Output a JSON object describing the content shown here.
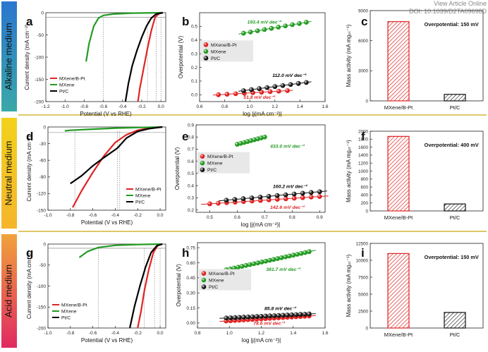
{
  "header": {
    "line1": "View Article Online",
    "line2": "DOI: 10.1039/D2TA09698D"
  },
  "rows": [
    {
      "label": "Alkaline medium",
      "color_top": "#2a76cf",
      "color_bottom": "#3aa8a8"
    },
    {
      "label": "Neutral medium",
      "color_top": "#f2d21c",
      "color_bottom": "#f5b52a"
    },
    {
      "label": "Acid medium",
      "color_top": "#f1a23b",
      "color_bottom": "#e02a62"
    }
  ],
  "colors": {
    "red": "#e02424",
    "green": "#239b23",
    "black": "#000000",
    "separator": "#d4b536"
  },
  "chart_data": [
    {
      "id": "lsv-alkaline",
      "panel": "a",
      "type": "line",
      "xlabel": "Potential (V vs RHE)",
      "ylabel": "Current density (mA cm⁻²)",
      "xlim": [
        -1.2,
        0.05
      ],
      "ylim": [
        -200,
        0
      ],
      "xticks": [
        "-1.2",
        "-1.0",
        "-0.8",
        "-0.6",
        "-0.4",
        "-0.2",
        "0.0"
      ],
      "xtick_vals": [
        -1.2,
        -1.0,
        -0.8,
        -0.6,
        -0.4,
        -0.2,
        0.0
      ],
      "yticks": [
        "0",
        "-50",
        "-100",
        "-150",
        "-200"
      ],
      "ytick_vals": [
        0,
        -50,
        -100,
        -150,
        -200
      ],
      "legend": [
        "MXene/B-Pt",
        "MXene",
        "Pt/C"
      ],
      "legend_pos": "bottom-left",
      "series": [
        {
          "name": "MXene/B-Pt",
          "color": "red",
          "x": [
            0.02,
            -0.02,
            -0.06,
            -0.1,
            -0.14,
            -0.18,
            -0.22,
            -0.24
          ],
          "y": [
            0,
            -2,
            -10,
            -40,
            -80,
            -125,
            -170,
            -200
          ]
        },
        {
          "name": "MXene",
          "color": "green",
          "x": [
            0.02,
            -0.3,
            -0.5,
            -0.6,
            -0.65,
            -0.7,
            -0.75,
            -0.78
          ],
          "y": [
            0,
            -1,
            -3,
            -6,
            -12,
            -30,
            -70,
            -110
          ]
        },
        {
          "name": "Pt/C",
          "color": "black",
          "x": [
            0.02,
            -0.05,
            -0.1,
            -0.15,
            -0.2,
            -0.25,
            -0.3,
            -0.34,
            -0.37
          ],
          "y": [
            0,
            -3,
            -12,
            -30,
            -55,
            -85,
            -120,
            -160,
            -200
          ]
        }
      ],
      "vlines": [
        -0.6,
        -0.14,
        -0.05,
        0.0
      ],
      "hline": -10
    },
    {
      "id": "tafel-alkaline",
      "panel": "b",
      "type": "scatter",
      "xlabel": "log |j(mA cm⁻²)|",
      "ylabel": "Overpotential (V)",
      "xlim": [
        0.6,
        1.6
      ],
      "ylim": [
        -0.05,
        0.6
      ],
      "xticks": [
        "0.6",
        "0.8",
        "1.0",
        "1.2",
        "1.4",
        "1.6"
      ],
      "xtick_vals": [
        0.6,
        0.8,
        1.0,
        1.2,
        1.4,
        1.6
      ],
      "yticks": [
        "0.0",
        "0.1",
        "0.2",
        "0.3",
        "0.4",
        "0.5"
      ],
      "ytick_vals": [
        0.0,
        0.1,
        0.2,
        0.3,
        0.4,
        0.5
      ],
      "legend": [
        "MXene/B-Pt",
        "MXene",
        "Pt/C"
      ],
      "legend_pos": "center-left",
      "series": [
        {
          "name": "MXene/B-Pt",
          "color": "red",
          "x0": 0.75,
          "x1": 1.3,
          "y0": 0.0,
          "y1": 0.03,
          "n": 9
        },
        {
          "name": "MXene",
          "color": "green",
          "x0": 0.95,
          "x1": 1.45,
          "y0": 0.45,
          "y1": 0.53,
          "n": 10
        },
        {
          "name": "Pt/C",
          "color": "black",
          "x0": 0.95,
          "x1": 1.45,
          "y0": 0.03,
          "y1": 0.09,
          "n": 9
        }
      ],
      "annotations": [
        {
          "text": "193.4 mV dec⁻¹",
          "color": "green",
          "x": 0.98,
          "y": 0.52
        },
        {
          "text": "112.0 mV dec⁻¹",
          "color": "black",
          "x": 1.18,
          "y": 0.13
        },
        {
          "text": "51.8 mV dec⁻¹",
          "color": "red",
          "x": 0.95,
          "y": -0.03
        }
      ]
    },
    {
      "id": "mass-alkaline",
      "panel": "c",
      "type": "bar",
      "ylabel": "Mass activity (mA mgₚₜ⁻¹)",
      "ylim": [
        0,
        9000
      ],
      "yticks": [
        "0",
        "3000",
        "6000",
        "9000"
      ],
      "ytick_vals": [
        0,
        3000,
        6000,
        9000
      ],
      "categories": [
        "MXene/B-Pt",
        "Pt/C"
      ],
      "values": [
        7900,
        650
      ],
      "note": "Overpotential: 150 mV"
    },
    {
      "id": "lsv-neutral",
      "panel": "d",
      "type": "line",
      "xlabel": "Potential (V vs RHE)",
      "ylabel": "Current density (mA cm⁻²)",
      "xlim": [
        -1.0,
        0.05
      ],
      "ylim": [
        -150,
        0
      ],
      "xticks": [
        "-1.0",
        "-0.8",
        "-0.6",
        "-0.4",
        "-0.2",
        "0.0"
      ],
      "xtick_vals": [
        -1.0,
        -0.8,
        -0.6,
        -0.4,
        -0.2,
        0.0
      ],
      "yticks": [
        "0",
        "-30",
        "-60",
        "-90",
        "-120",
        "-150"
      ],
      "ytick_vals": [
        0,
        -30,
        -60,
        -90,
        -120,
        -150
      ],
      "legend": [
        "MXene/B-Pt",
        "MXene",
        "Pt/C"
      ],
      "legend_pos": "bottom-right",
      "series": [
        {
          "name": "MXene/B-Pt",
          "color": "red",
          "x": [
            0.02,
            -0.1,
            -0.2,
            -0.3,
            -0.4,
            -0.5,
            -0.6,
            -0.7,
            -0.78
          ],
          "y": [
            0,
            -2,
            -6,
            -14,
            -28,
            -52,
            -82,
            -115,
            -145
          ]
        },
        {
          "name": "MXene",
          "color": "green",
          "x": [
            0.02,
            -0.2,
            -0.4,
            -0.6,
            -0.8,
            -0.85
          ],
          "y": [
            0,
            -1,
            -2,
            -4,
            -6,
            -7
          ]
        },
        {
          "name": "Pt/C",
          "color": "black",
          "x": [
            0.02,
            -0.1,
            -0.2,
            -0.3,
            -0.38,
            -0.5,
            -0.6,
            -0.7,
            -0.8
          ],
          "y": [
            0,
            -3,
            -8,
            -20,
            -38,
            -55,
            -70,
            -88,
            -102
          ]
        }
      ],
      "vlines": [
        -0.76,
        -0.38,
        -0.36
      ],
      "hline": -10
    },
    {
      "id": "tafel-neutral",
      "panel": "e",
      "type": "scatter",
      "xlabel": "log |j(mA cm⁻²)|",
      "ylabel": "Overpotential (V)",
      "xlim": [
        0.45,
        0.92
      ],
      "ylim": [
        0.18,
        0.9
      ],
      "xticks": [
        "0.5",
        "0.6",
        "0.7",
        "0.8",
        "0.9"
      ],
      "xtick_vals": [
        0.5,
        0.6,
        0.7,
        0.8,
        0.9
      ],
      "yticks": [
        "0.2",
        "0.3",
        "0.4",
        "0.5",
        "0.6",
        "0.7",
        "0.8",
        "0.9"
      ],
      "ytick_vals": [
        0.2,
        0.3,
        0.4,
        0.5,
        0.6,
        0.7,
        0.8,
        0.9
      ],
      "legend": [
        "MXene/B-Pt",
        "MXene",
        "Pt/C"
      ],
      "legend_pos": "center-left",
      "series": [
        {
          "name": "MXene/B-Pt",
          "color": "red",
          "x0": 0.5,
          "x1": 0.9,
          "y0": 0.25,
          "y1": 0.31,
          "n": 14
        },
        {
          "name": "MXene",
          "color": "green",
          "x0": 0.6,
          "x1": 0.7,
          "y0": 0.74,
          "y1": 0.8,
          "n": 9
        },
        {
          "name": "Pt/C",
          "color": "black",
          "x0": 0.56,
          "x1": 0.9,
          "y0": 0.28,
          "y1": 0.35,
          "n": 12
        }
      ],
      "annotations": [
        {
          "text": "433.0 mV dec⁻¹",
          "color": "green",
          "x": 0.72,
          "y": 0.71
        },
        {
          "text": "160.2 mV dec⁻¹",
          "color": "black",
          "x": 0.73,
          "y": 0.38
        },
        {
          "text": "142.6 mV dec⁻¹",
          "color": "red",
          "x": 0.72,
          "y": 0.21
        }
      ]
    },
    {
      "id": "mass-neutral",
      "panel": "f",
      "type": "bar",
      "ylabel": "Mass activity (mA mgₚₜ⁻¹)",
      "ylim": [
        0,
        2000
      ],
      "yticks": [
        "0",
        "200",
        "400",
        "600",
        "800",
        "1000",
        "1200",
        "1400",
        "1600",
        "1800",
        "2000"
      ],
      "ytick_vals": [
        0,
        200,
        400,
        600,
        800,
        1000,
        1200,
        1400,
        1600,
        1800,
        2000
      ],
      "categories": [
        "MXene/B-Pt",
        "Pt/C"
      ],
      "values": [
        1870,
        175
      ],
      "note": "Overpotential: 400 mV"
    },
    {
      "id": "lsv-acid",
      "panel": "g",
      "type": "line",
      "xlabel": "Potential (V vs RHE)",
      "ylabel": "Current density (mA cm⁻²)",
      "xlim": [
        -1.0,
        0.05
      ],
      "ylim": [
        -200,
        0
      ],
      "xticks": [
        "-1.0",
        "-0.8",
        "-0.6",
        "-0.4",
        "-0.2",
        "0.0"
      ],
      "xtick_vals": [
        -1.0,
        -0.8,
        -0.6,
        -0.4,
        -0.2,
        0.0
      ],
      "yticks": [
        "0",
        "-50",
        "-100",
        "-150",
        "-200"
      ],
      "ytick_vals": [
        0,
        -50,
        -100,
        -150,
        -200
      ],
      "legend": [
        "MXene/B-Pt",
        "MXene",
        "Pt/C"
      ],
      "legend_pos": "bottom-left",
      "series": [
        {
          "name": "MXene/B-Pt",
          "color": "red",
          "x": [
            0.02,
            -0.02,
            -0.06,
            -0.1,
            -0.14,
            -0.17,
            -0.2
          ],
          "y": [
            0,
            -3,
            -20,
            -60,
            -110,
            -160,
            -200
          ]
        },
        {
          "name": "MXene",
          "color": "green",
          "x": [
            0.02,
            -0.2,
            -0.4,
            -0.55,
            -0.65,
            -0.72
          ],
          "y": [
            0,
            -1,
            -3,
            -8,
            -18,
            -32
          ]
        },
        {
          "name": "Pt/C",
          "color": "black",
          "x": [
            0.02,
            -0.03,
            -0.08,
            -0.13,
            -0.18,
            -0.23,
            -0.27
          ],
          "y": [
            0,
            -4,
            -20,
            -55,
            -100,
            -150,
            -200
          ]
        }
      ],
      "vlines": [
        -0.55,
        -0.14,
        -0.05,
        0.0
      ],
      "hline": -10
    },
    {
      "id": "tafel-acid",
      "panel": "h",
      "type": "scatter",
      "xlabel": "log |j(mA cm⁻²)|",
      "ylabel": "Overpotential (V)",
      "xlim": [
        0.8,
        1.6
      ],
      "ylim": [
        -0.05,
        0.8
      ],
      "xticks": [
        "0.8",
        "1.0",
        "1.2",
        "1.4",
        "1.6"
      ],
      "xtick_vals": [
        0.8,
        1.0,
        1.2,
        1.4,
        1.6
      ],
      "yticks": [
        "0.00",
        "0.15",
        "0.30",
        "0.45",
        "0.60",
        "0.75"
      ],
      "ytick_vals": [
        0.0,
        0.15,
        0.3,
        0.45,
        0.6,
        0.75
      ],
      "legend": [
        "MXene/B-Pt",
        "MXene",
        "Pt/C"
      ],
      "legend_pos": "center-left",
      "series": [
        {
          "name": "MXene/B-Pt",
          "color": "red",
          "x0": 0.98,
          "x1": 1.5,
          "y0": 0.02,
          "y1": 0.07,
          "n": 20
        },
        {
          "name": "MXene",
          "color": "green",
          "x0": 0.98,
          "x1": 1.5,
          "y0": 0.53,
          "y1": 0.71,
          "n": 22
        },
        {
          "name": "Pt/C",
          "color": "black",
          "x0": 0.98,
          "x1": 1.5,
          "y0": 0.05,
          "y1": 0.09,
          "n": 20
        }
      ],
      "annotations": [
        {
          "text": "381.7 mV dec⁻¹",
          "color": "green",
          "x": 1.23,
          "y": 0.52
        },
        {
          "text": "85.8 mV dec⁻¹",
          "color": "black",
          "x": 1.22,
          "y": 0.13
        },
        {
          "text": "78.6 mV dec⁻¹",
          "color": "red",
          "x": 1.15,
          "y": -0.02
        }
      ]
    },
    {
      "id": "mass-acid",
      "panel": "i",
      "type": "bar",
      "ylabel": "Mass activity (mA mgₚₜ⁻¹)",
      "ylim": [
        0,
        12500
      ],
      "yticks": [
        "0",
        "2500",
        "5000",
        "7500",
        "10000",
        "12500"
      ],
      "ytick_vals": [
        0,
        2500,
        5000,
        7500,
        10000,
        12500
      ],
      "categories": [
        "MXene/B-Pt",
        "Pt/C"
      ],
      "values": [
        11000,
        2300
      ],
      "note": "Overpotential: 150 mV"
    }
  ]
}
